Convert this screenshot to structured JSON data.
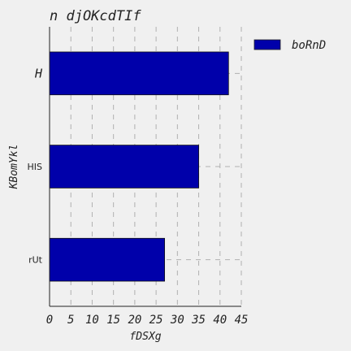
{
  "chart_data": {
    "type": "bar",
    "orientation": "horizontal",
    "title": "n djOKcdTIf",
    "xlabel": "fDSXg",
    "ylabel": "KBomYkl",
    "categories": [
      "H",
      "HIS",
      "rUt"
    ],
    "series": [
      {
        "name": "boRnD",
        "values": [
          42,
          35,
          27
        ],
        "color": "#0000aa"
      }
    ],
    "xlim": [
      0,
      45
    ],
    "xticks": [
      "0",
      "5",
      "10",
      "15",
      "20",
      "25",
      "30",
      "35",
      "40",
      "45"
    ],
    "grid": true,
    "legend_position": "top-right-outside"
  }
}
